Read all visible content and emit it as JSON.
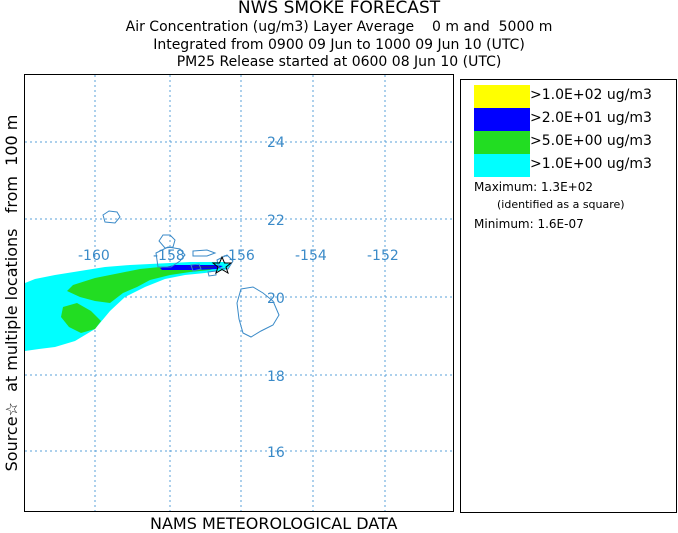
{
  "header": {
    "title": "NWS SMOKE FORECAST",
    "line1": "Air Concentration (ug/m3) Layer Average    0 m and  5000 m",
    "line2": "Integrated from 0900 09 Jun to 1000 09 Jun 10 (UTC)",
    "line3": "PM25 Release started at 0600 08 Jun 10 (UTC)"
  },
  "map": {
    "side_label": "Source☆  at multiple locations   from  100 m",
    "footer": "NAMS METEOROLOGICAL DATA",
    "lon_labels": [
      "-160",
      "-158",
      "-156",
      "-154",
      "-152"
    ],
    "lat_labels": [
      "24",
      "22",
      "20",
      "18",
      "16"
    ],
    "source_marker": "source-star-icon"
  },
  "legend": {
    "items": [
      {
        "label": ">1.0E+02 ug/m3",
        "color": "#ffff00"
      },
      {
        "label": ">2.0E+01 ug/m3",
        "color": "#0000ff"
      },
      {
        "label": ">5.0E+00 ug/m3",
        "color": "#22dd22"
      },
      {
        "label": ">1.0E+00 ug/m3",
        "color": "#00ffff"
      }
    ],
    "maximum": "Maximum: 1.3E+02",
    "maximum_note": "(identified as a square)",
    "minimum": "Minimum: 1.6E-07"
  },
  "colors": {
    "gridline": "#5aa0d8",
    "grid_label": "#3a8ac8",
    "coastline": "#3a8ac8"
  }
}
